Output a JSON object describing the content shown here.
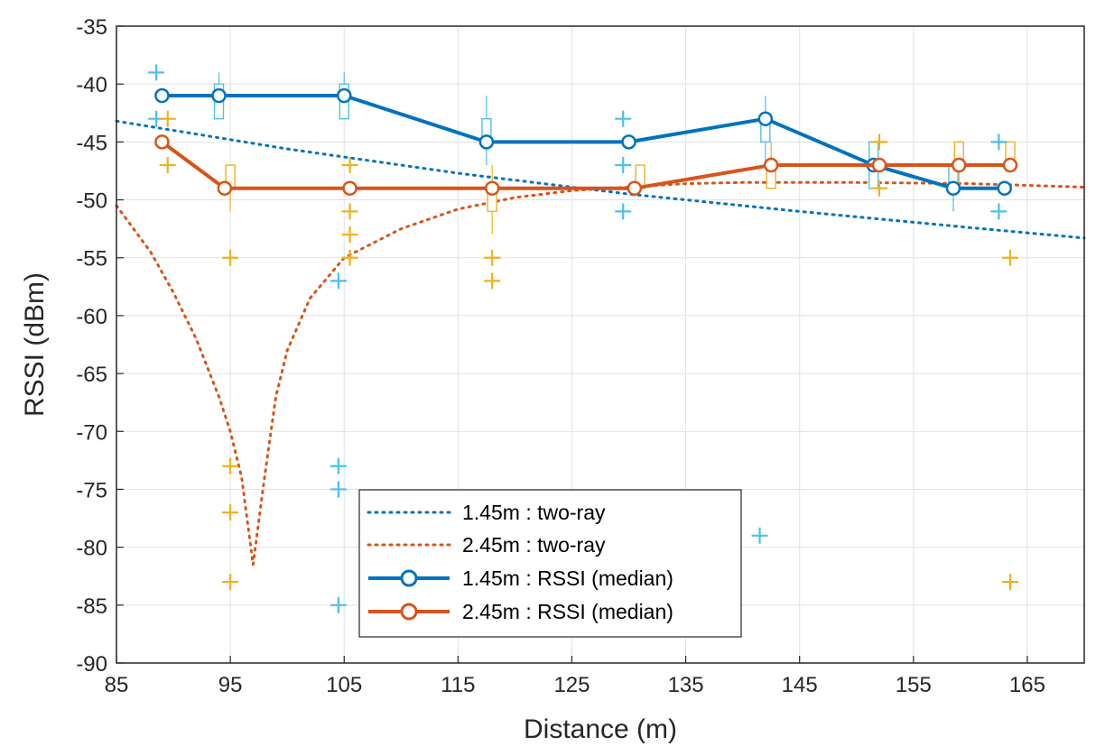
{
  "chart_data": {
    "type": "line",
    "xlabel": "Distance (m)",
    "ylabel": "RSSI (dBm)",
    "xlim": [
      85,
      170
    ],
    "ylim": [
      -90,
      -35
    ],
    "xticks": [
      85,
      95,
      105,
      115,
      125,
      135,
      145,
      155,
      165
    ],
    "yticks": [
      -35,
      -40,
      -45,
      -50,
      -55,
      -60,
      -65,
      -70,
      -75,
      -80,
      -85,
      -90
    ],
    "grid": true,
    "legend_position": "lower-center",
    "colors": {
      "blue": "#0072BD",
      "orange": "#D95319",
      "lightblue": "#4DBEEE",
      "yellow": "#EDB120"
    },
    "series": [
      {
        "name": "1.45m : two-ray",
        "style": "dotted",
        "color": "#0072BD",
        "x": [
          85,
          100,
          115,
          130,
          145,
          160,
          170
        ],
        "y": [
          -43.2,
          -45.6,
          -47.7,
          -49.5,
          -51.0,
          -52.4,
          -53.3
        ]
      },
      {
        "name": "2.45m : two-ray",
        "style": "dotted",
        "color": "#D95319",
        "x": [
          85,
          88,
          90,
          92,
          94,
          95,
          96,
          97,
          98,
          99,
          100,
          102,
          105,
          110,
          115,
          120,
          125,
          130,
          135,
          140,
          145,
          150,
          160,
          170
        ],
        "y": [
          -50.5,
          -54.5,
          -58,
          -62,
          -67,
          -70,
          -74,
          -81.5,
          -74,
          -67,
          -63,
          -58.5,
          -55,
          -52.5,
          -50.8,
          -49.8,
          -49.2,
          -48.9,
          -48.6,
          -48.5,
          -48.5,
          -48.5,
          -48.6,
          -48.9
        ]
      },
      {
        "name": "1.45m : RSSI (median)",
        "style": "solid-marker",
        "color": "#0072BD",
        "x": [
          89,
          94,
          105,
          117.5,
          130,
          142,
          151.5,
          158.5,
          163
        ],
        "y": [
          -41,
          -41,
          -41,
          -45,
          -45,
          -43,
          -47,
          -49,
          -49
        ]
      },
      {
        "name": "2.45m : RSSI (median)",
        "style": "solid-marker",
        "color": "#D95319",
        "x": [
          89,
          94.5,
          105.5,
          118,
          130.5,
          142.5,
          152,
          159,
          163.5
        ],
        "y": [
          -45,
          -49,
          -49,
          -49,
          -49,
          -47,
          -47,
          -47,
          -47
        ]
      }
    ],
    "boxes": [
      {
        "group": "1.45m",
        "x": 94,
        "q1": -43,
        "q3": -40,
        "wlo": -43,
        "whi": -39
      },
      {
        "group": "1.45m",
        "x": 105,
        "q1": -43,
        "q3": -40,
        "wlo": -43,
        "whi": -39
      },
      {
        "group": "1.45m",
        "x": 117.5,
        "q1": -45,
        "q3": -43,
        "wlo": -47,
        "whi": -41
      },
      {
        "group": "1.45m",
        "x": 142,
        "q1": -45,
        "q3": -43,
        "wlo": -47,
        "whi": -41
      },
      {
        "group": "1.45m",
        "x": 151.5,
        "q1": -49,
        "q3": -45,
        "wlo": -49,
        "whi": -45
      },
      {
        "group": "1.45m",
        "x": 158.5,
        "q1": -49,
        "q3": -47,
        "wlo": -51,
        "whi": -47
      },
      {
        "group": "2.45m",
        "x": 95,
        "q1": -49,
        "q3": -47,
        "wlo": -51,
        "whi": -47
      },
      {
        "group": "2.45m",
        "x": 118,
        "q1": -51,
        "q3": -49,
        "wlo": -53,
        "whi": -47
      },
      {
        "group": "2.45m",
        "x": 131,
        "q1": -49,
        "q3": -47,
        "wlo": -49,
        "whi": -47
      },
      {
        "group": "2.45m",
        "x": 142.5,
        "q1": -49,
        "q3": -47,
        "wlo": -49,
        "whi": -45
      },
      {
        "group": "2.45m",
        "x": 159,
        "q1": -47,
        "q3": -45,
        "wlo": -49,
        "whi": -45
      },
      {
        "group": "2.45m",
        "x": 163.5,
        "q1": -47,
        "q3": -45,
        "wlo": -47,
        "whi": -45
      }
    ],
    "outliers": [
      {
        "group": "1.45m",
        "x": 88.5,
        "y": -39
      },
      {
        "group": "1.45m",
        "x": 88.5,
        "y": -43
      },
      {
        "group": "1.45m",
        "x": 104.5,
        "y": -57
      },
      {
        "group": "1.45m",
        "x": 104.5,
        "y": -73
      },
      {
        "group": "1.45m",
        "x": 104.5,
        "y": -75
      },
      {
        "group": "1.45m",
        "x": 104.5,
        "y": -85
      },
      {
        "group": "1.45m",
        "x": 129.5,
        "y": -43
      },
      {
        "group": "1.45m",
        "x": 129.5,
        "y": -47
      },
      {
        "group": "1.45m",
        "x": 129.5,
        "y": -51
      },
      {
        "group": "1.45m",
        "x": 141.5,
        "y": -79
      },
      {
        "group": "1.45m",
        "x": 162.5,
        "y": -45
      },
      {
        "group": "1.45m",
        "x": 162.5,
        "y": -51
      },
      {
        "group": "2.45m",
        "x": 89.5,
        "y": -43
      },
      {
        "group": "2.45m",
        "x": 89.5,
        "y": -47
      },
      {
        "group": "2.45m",
        "x": 95,
        "y": -55
      },
      {
        "group": "2.45m",
        "x": 95,
        "y": -73
      },
      {
        "group": "2.45m",
        "x": 95,
        "y": -77
      },
      {
        "group": "2.45m",
        "x": 95,
        "y": -83
      },
      {
        "group": "2.45m",
        "x": 105.5,
        "y": -47
      },
      {
        "group": "2.45m",
        "x": 105.5,
        "y": -51
      },
      {
        "group": "2.45m",
        "x": 105.5,
        "y": -53
      },
      {
        "group": "2.45m",
        "x": 105.5,
        "y": -55
      },
      {
        "group": "2.45m",
        "x": 118,
        "y": -55
      },
      {
        "group": "2.45m",
        "x": 118,
        "y": -57
      },
      {
        "group": "2.45m",
        "x": 152,
        "y": -45
      },
      {
        "group": "2.45m",
        "x": 152,
        "y": -49
      },
      {
        "group": "2.45m",
        "x": 163.5,
        "y": -55
      },
      {
        "group": "2.45m",
        "x": 163.5,
        "y": -83
      }
    ]
  }
}
